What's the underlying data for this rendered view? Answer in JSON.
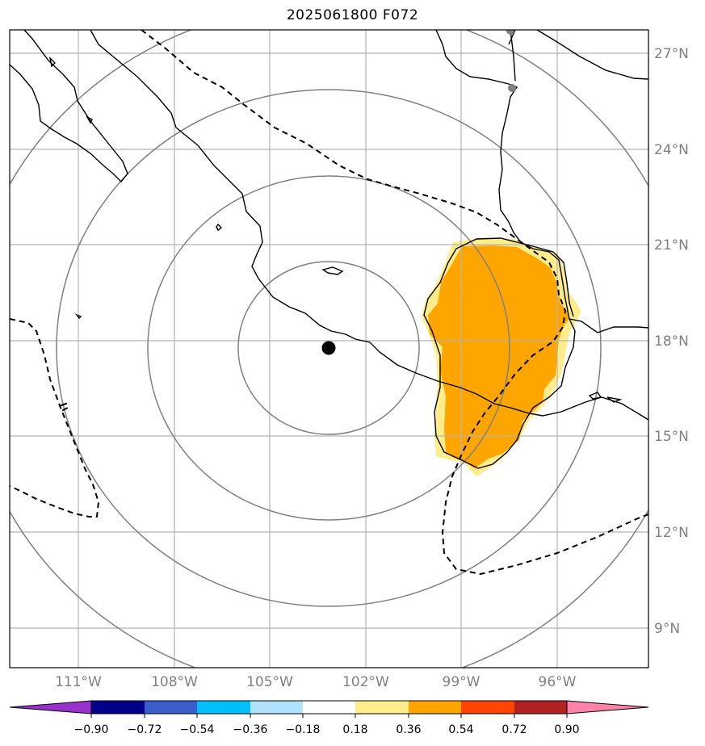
{
  "title": "2025061800 F072",
  "latitude_ticks": [
    {
      "value": 27,
      "label": "27°N"
    },
    {
      "value": 24,
      "label": "24°N"
    },
    {
      "value": 21,
      "label": "21°N"
    },
    {
      "value": 18,
      "label": "18°N"
    },
    {
      "value": 15,
      "label": "15°N"
    },
    {
      "value": 12,
      "label": "12°N"
    },
    {
      "value": 9,
      "label": "9°N"
    }
  ],
  "longitude_ticks": [
    {
      "value": -111,
      "label": "111°W"
    },
    {
      "value": -108,
      "label": "108°W"
    },
    {
      "value": -105,
      "label": "105°W"
    },
    {
      "value": -102,
      "label": "102°W"
    },
    {
      "value": -99,
      "label": "99°W"
    },
    {
      "value": -96,
      "label": "96°W"
    }
  ],
  "map_extent": {
    "lon_min": -113.2,
    "lon_max": -93.2,
    "lat_min": 7.8,
    "lat_max": 27.7
  },
  "center_marker": {
    "lon": -103.2,
    "lat": 17.75
  },
  "colorbar": {
    "ticks": [
      "−0.90",
      "−0.72",
      "−0.54",
      "−0.36",
      "−0.18",
      "0.18",
      "0.36",
      "0.54",
      "0.72",
      "0.90"
    ],
    "colors": [
      "#9932cc",
      "#00008b",
      "#3a5fcd",
      "#00bfff",
      "#b0e2ff",
      "#ffffff",
      "#ffec8b",
      "#ffa500",
      "#ff4500",
      "#b22222",
      "#ff82ab"
    ]
  },
  "colors": {
    "fill_low": "#ffec8b",
    "fill_mid": "#ffa500",
    "grid": "#b3b3b3",
    "range_ring": "#808080",
    "coastline": "#000000"
  }
}
